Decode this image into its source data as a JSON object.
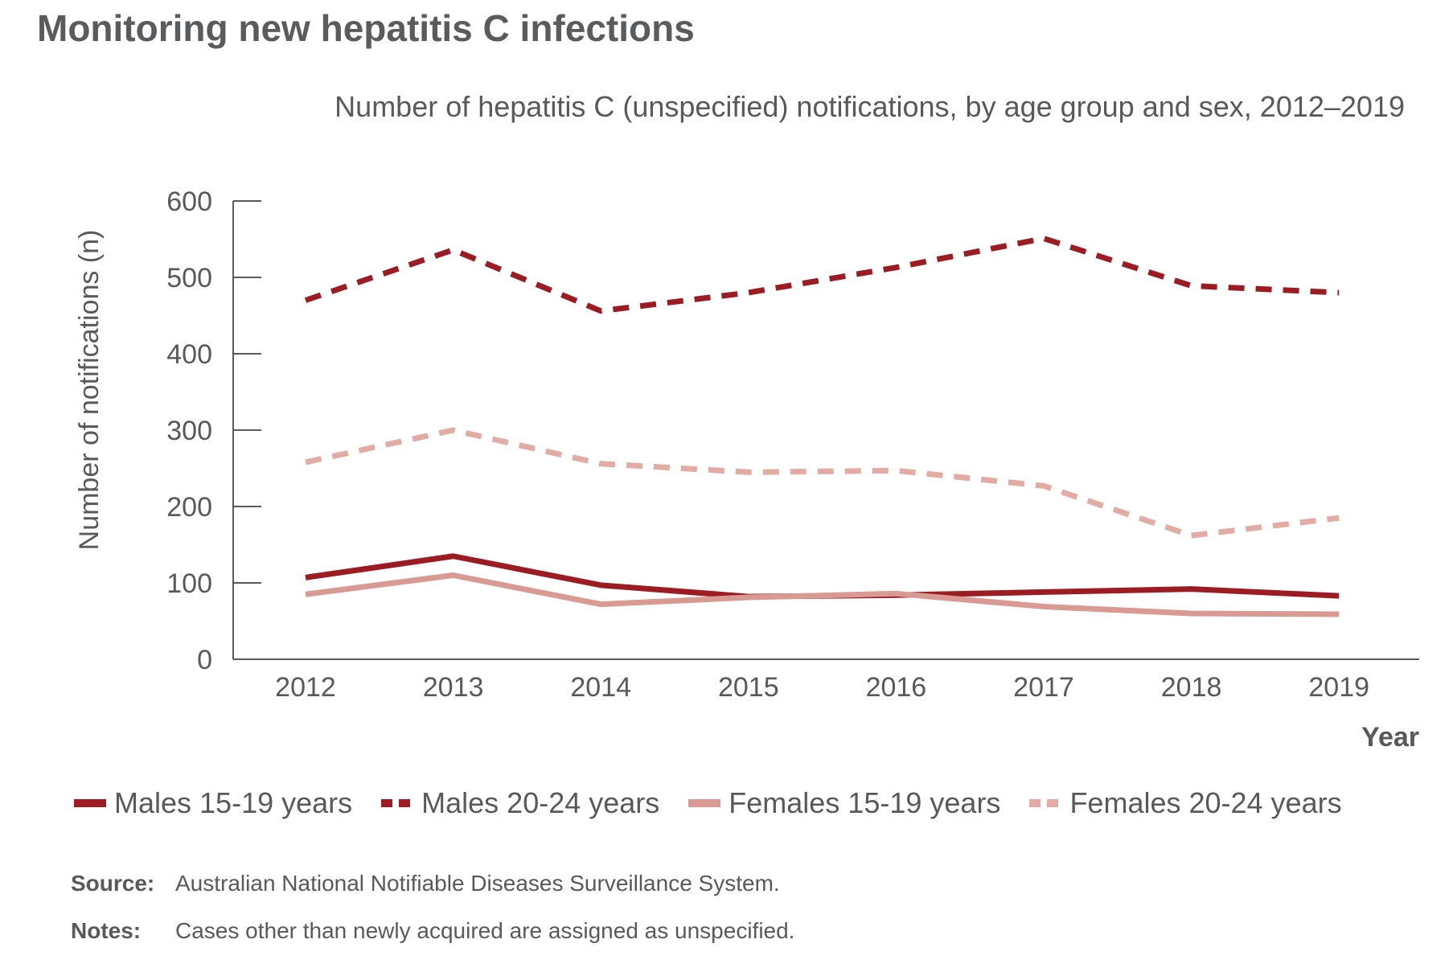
{
  "header": {
    "title": "Monitoring new hepatitis C infections"
  },
  "chart_data": {
    "type": "line",
    "title": "Number of hepatitis C (unspecified) notifications, by age group and sex, 2012–2019",
    "xlabel": "Year",
    "ylabel": "Number of notifications (n)",
    "x": [
      "2012",
      "2013",
      "2014",
      "2015",
      "2016",
      "2017",
      "2018",
      "2019"
    ],
    "ylim": [
      0,
      600
    ],
    "yticks": [
      "0",
      "100",
      "200",
      "300",
      "400",
      "500",
      "600"
    ],
    "grid": false,
    "legend_position": "bottom",
    "series": [
      {
        "name": "Males 15-19 years",
        "values": [
          107,
          135,
          97,
          82,
          84,
          88,
          92,
          83
        ],
        "color": "#9b1c23",
        "style": "solid"
      },
      {
        "name": "Males 20-24 years",
        "values": [
          470,
          536,
          456,
          480,
          513,
          551,
          489,
          480
        ],
        "color": "#9b1c23",
        "style": "dashed"
      },
      {
        "name": "Females 15-19 years",
        "values": [
          85,
          110,
          72,
          81,
          86,
          69,
          60,
          59
        ],
        "color": "#d89a92",
        "style": "solid"
      },
      {
        "name": "Females 20-24 years",
        "values": [
          258,
          300,
          256,
          245,
          247,
          227,
          162,
          185
        ],
        "color": "#e2aba3",
        "style": "dashed"
      }
    ]
  },
  "footnotes": {
    "source_key": "Source:",
    "source_text": "Australian National Notifiable Diseases Surveillance System.",
    "notes_key": "Notes:",
    "notes_text": "Cases other than newly acquired are assigned as unspecified."
  }
}
